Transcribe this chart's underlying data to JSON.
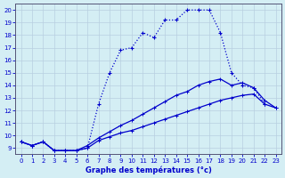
{
  "xlabel": "Graphe des températures (°c)",
  "bg_color": "#d4eef4",
  "grid_color": "#b8cfe0",
  "line_color": "#0000cc",
  "xlim": [
    -0.5,
    23.5
  ],
  "ylim": [
    8.5,
    20.5
  ],
  "xticks": [
    0,
    1,
    2,
    3,
    4,
    5,
    6,
    7,
    8,
    9,
    10,
    11,
    12,
    13,
    14,
    15,
    16,
    17,
    18,
    19,
    20,
    21,
    22,
    23
  ],
  "yticks": [
    9,
    10,
    11,
    12,
    13,
    14,
    15,
    16,
    17,
    18,
    19,
    20
  ],
  "line1_x": [
    0,
    1,
    2,
    3,
    4,
    5,
    6,
    7,
    8,
    9,
    10,
    11,
    12,
    13,
    14,
    15,
    16,
    17,
    18,
    19,
    20,
    21,
    22
  ],
  "line1_y": [
    9.5,
    9.2,
    9.5,
    8.8,
    8.8,
    8.8,
    9.0,
    12.5,
    15.0,
    16.8,
    17.0,
    18.2,
    17.8,
    19.2,
    19.2,
    20.0,
    20.0,
    20.0,
    18.2,
    15.0,
    14.0,
    13.8,
    12.5
  ],
  "line2_x": [
    0,
    1,
    2,
    3,
    4,
    5,
    6,
    7,
    8,
    9,
    10,
    11,
    12,
    13,
    14,
    15,
    16,
    17,
    18,
    19,
    20,
    21,
    22,
    23
  ],
  "line2_y": [
    9.5,
    9.2,
    9.5,
    8.8,
    8.8,
    8.8,
    9.2,
    9.8,
    10.3,
    10.8,
    11.2,
    11.7,
    12.2,
    12.7,
    13.2,
    13.5,
    14.0,
    14.3,
    14.5,
    14.0,
    14.2,
    13.8,
    12.8,
    12.2
  ],
  "line3_x": [
    0,
    1,
    2,
    3,
    4,
    5,
    6,
    7,
    8,
    9,
    10,
    11,
    12,
    13,
    14,
    15,
    16,
    17,
    18,
    19,
    20,
    21,
    22,
    23
  ],
  "line3_y": [
    9.5,
    9.2,
    9.5,
    8.8,
    8.8,
    8.8,
    9.0,
    9.6,
    9.9,
    10.2,
    10.4,
    10.7,
    11.0,
    11.3,
    11.6,
    11.9,
    12.2,
    12.5,
    12.8,
    13.0,
    13.2,
    13.3,
    12.5,
    12.2
  ]
}
